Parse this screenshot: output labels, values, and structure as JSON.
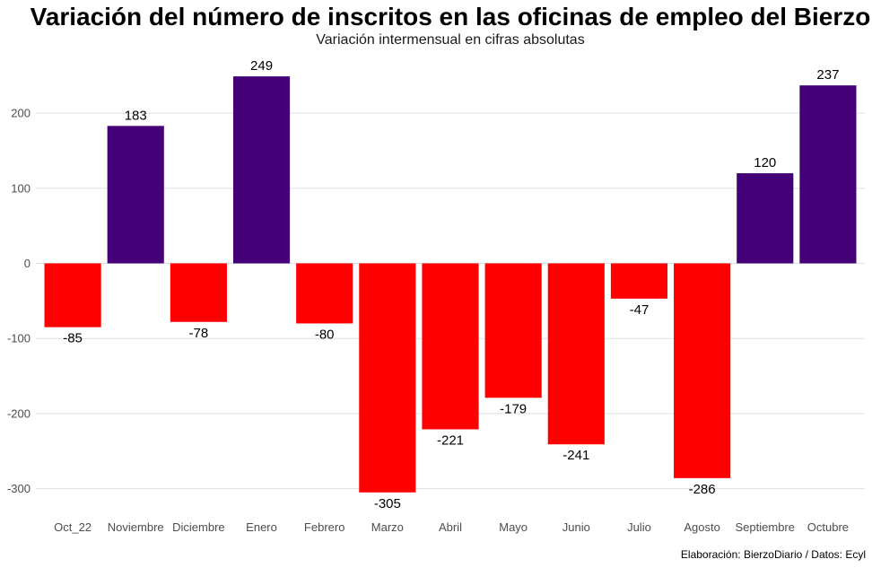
{
  "chart_data": {
    "type": "bar",
    "title": "Variación del número de inscritos en las oficinas de empleo del Bierzo",
    "subtitle": "Variación intermensual en cifras absolutas",
    "caption": "Elaboración: BierzoDiario / Datos: Ecyl",
    "xlabel": "",
    "ylabel": "",
    "categories": [
      "Oct_22",
      "Noviembre",
      "Diciembre",
      "Enero",
      "Febrero",
      "Marzo",
      "Abril",
      "Mayo",
      "Junio",
      "Julio",
      "Agosto",
      "Septiembre",
      "Octubre"
    ],
    "values": [
      -85,
      183,
      -78,
      249,
      -80,
      -305,
      -221,
      -179,
      -241,
      -47,
      -286,
      120,
      237
    ],
    "ylim": [
      -330,
      265
    ],
    "yticks": [
      -300,
      -200,
      -100,
      0,
      100,
      200
    ],
    "grid": true,
    "legend": "none",
    "colors": {
      "positive": "#440077",
      "negative": "#ff0000"
    }
  }
}
